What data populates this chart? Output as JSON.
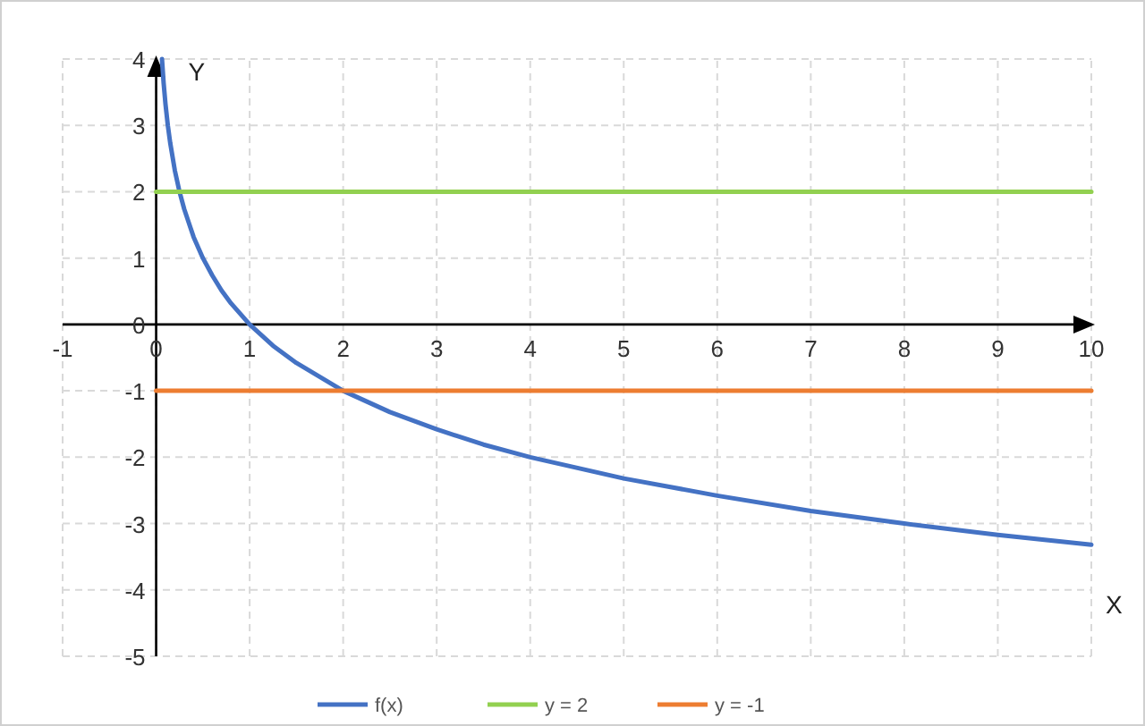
{
  "chart_data": {
    "type": "line",
    "xlabel": "X",
    "ylabel": "Y",
    "xlim": [
      -1,
      10
    ],
    "ylim": [
      -5,
      4
    ],
    "xticks": [
      -1,
      0,
      1,
      2,
      3,
      4,
      5,
      6,
      7,
      8,
      9,
      10
    ],
    "yticks": [
      -5,
      -4,
      -3,
      -2,
      -1,
      0,
      1,
      2,
      3,
      4
    ],
    "grid": true,
    "legend": "bottom",
    "line_style": "solid",
    "marker": "none",
    "series": [
      {
        "name": "f(x)",
        "color": "#4472c4",
        "x": [
          0.0625,
          0.08,
          0.1,
          0.125,
          0.15,
          0.2,
          0.25,
          0.3,
          0.4,
          0.5,
          0.6,
          0.7,
          0.8,
          1,
          1.25,
          1.5,
          2,
          2.5,
          3,
          3.5,
          4,
          5,
          6,
          7,
          8,
          9,
          10
        ],
        "values": [
          4,
          3.64,
          3.32,
          3,
          2.74,
          2.32,
          2,
          1.74,
          1.32,
          1,
          0.74,
          0.51,
          0.32,
          0,
          -0.32,
          -0.58,
          -1,
          -1.32,
          -1.58,
          -1.81,
          -2,
          -2.32,
          -2.58,
          -2.81,
          -3,
          -3.17,
          -3.32
        ]
      },
      {
        "name": "y = 2",
        "color": "#92d050",
        "x": [
          0,
          10
        ],
        "values": [
          2,
          2
        ]
      },
      {
        "name": "y = -1",
        "color": "#ed7d31",
        "x": [
          0,
          10
        ],
        "values": [
          -1,
          -1
        ]
      }
    ]
  }
}
